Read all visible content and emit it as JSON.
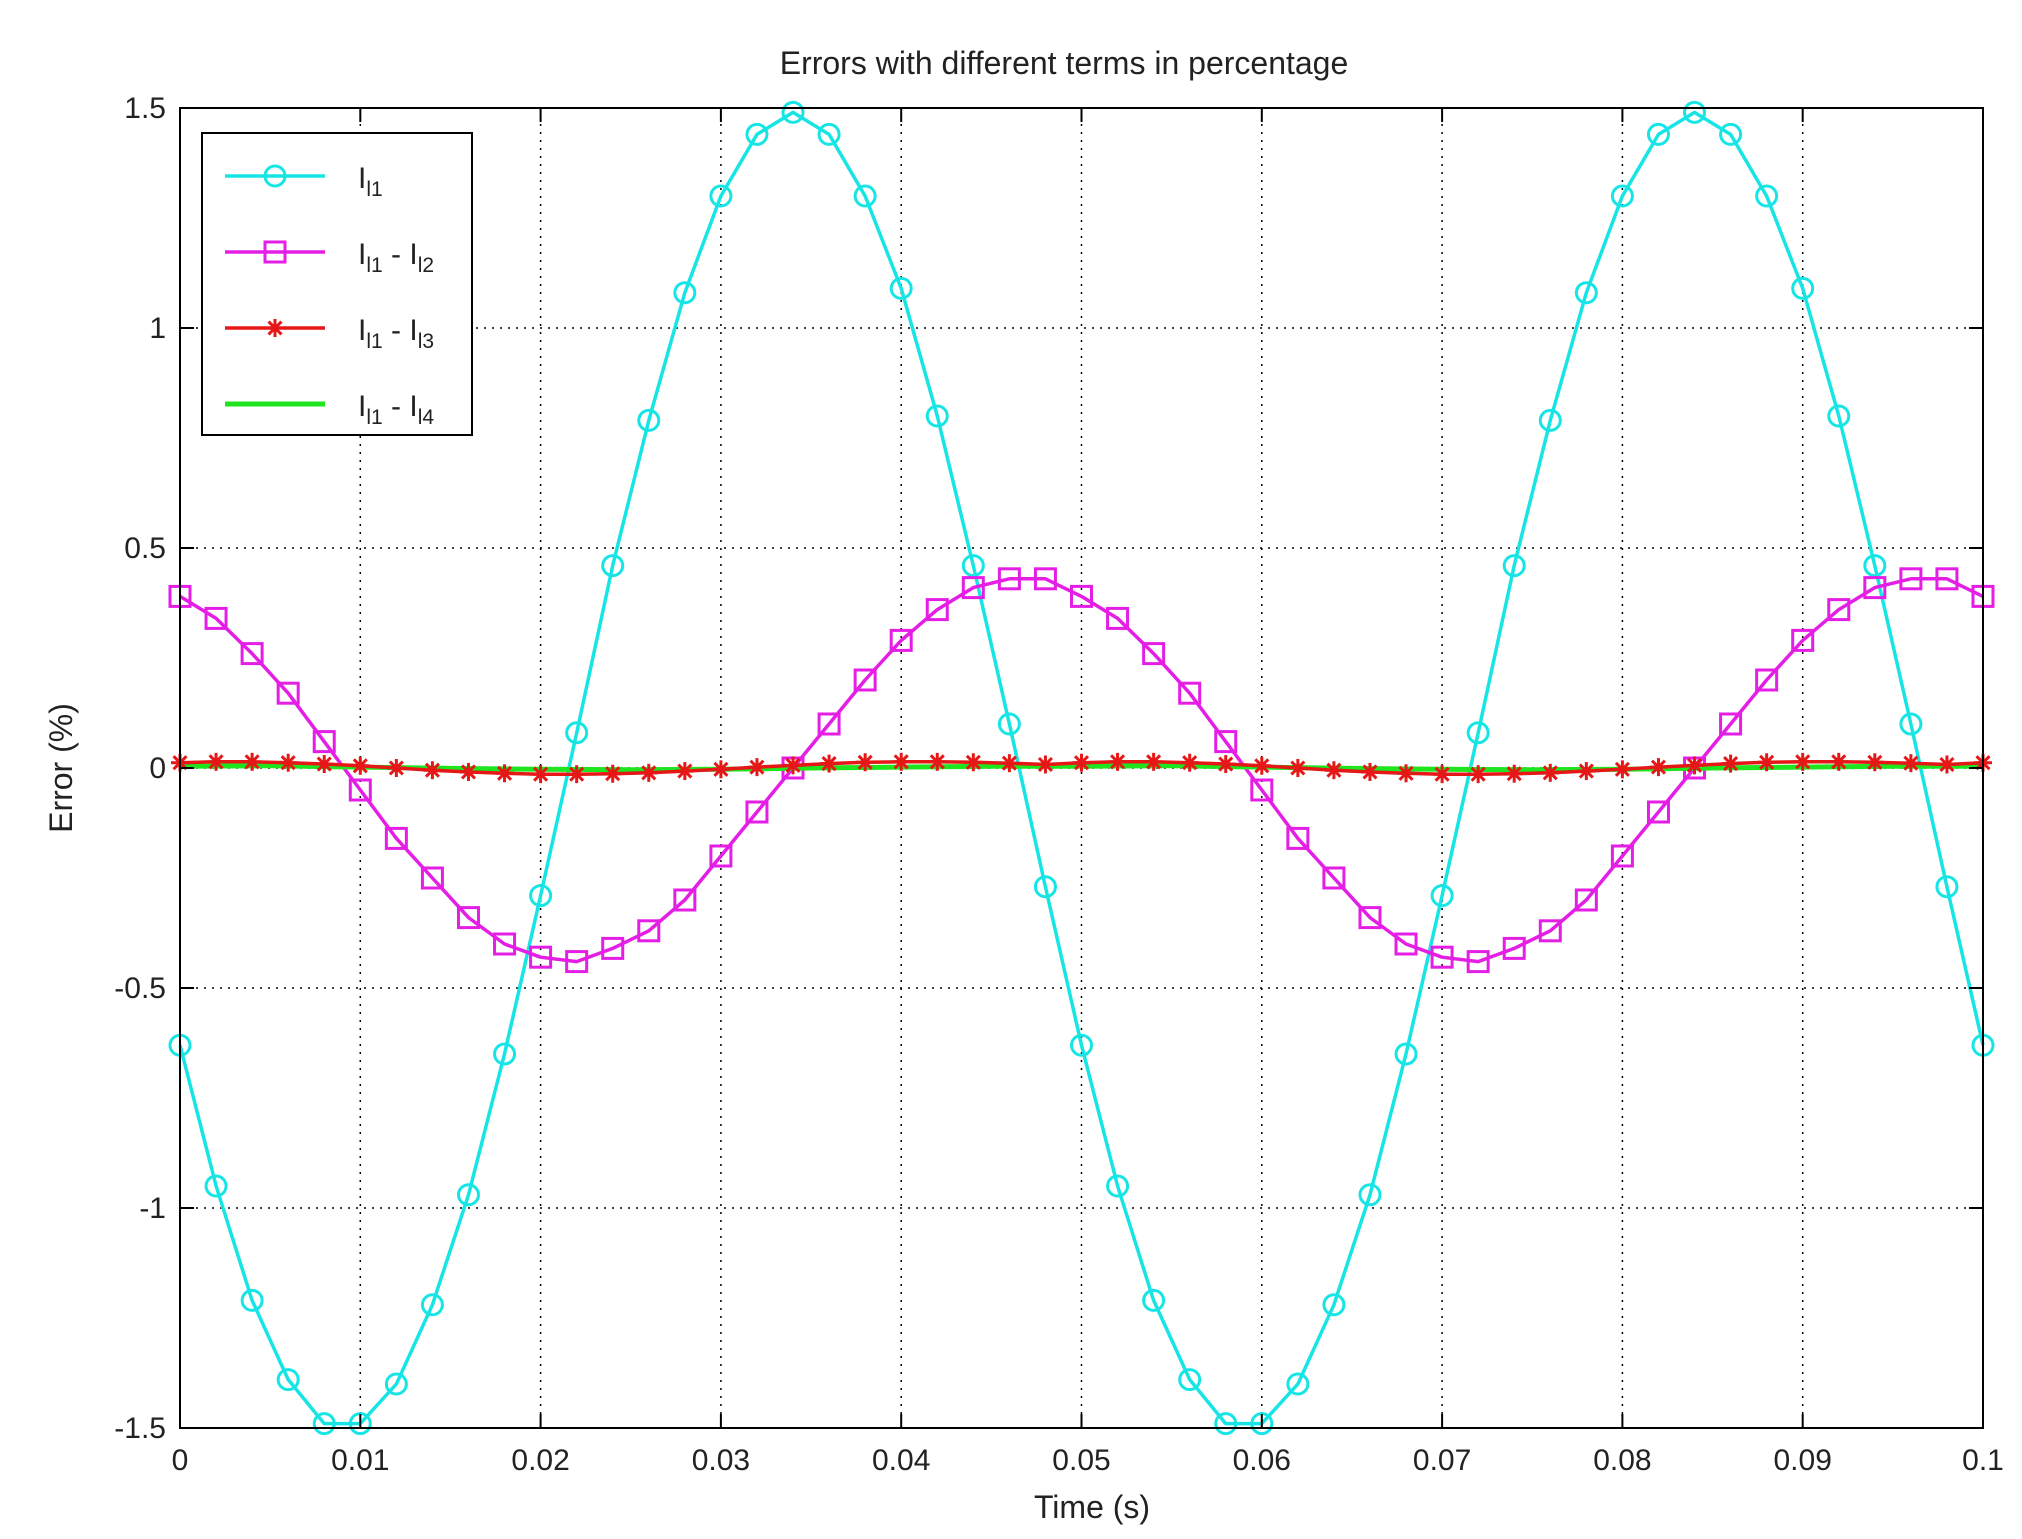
{
  "chart_data": {
    "type": "line",
    "title": "Errors with different terms in percentage",
    "xlabel": "Time (s)",
    "ylabel": "Error (%)",
    "xlim": [
      0,
      0.1
    ],
    "ylim": [
      -1.5,
      1.5
    ],
    "xticks": [
      0,
      0.01,
      0.02,
      0.03,
      0.04,
      0.05,
      0.06,
      0.07,
      0.08,
      0.09,
      0.1
    ],
    "xtick_labels": [
      "0",
      "0.01",
      "0.02",
      "0.03",
      "0.04",
      "0.05",
      "0.06",
      "0.07",
      "0.08",
      "0.09",
      "0.1"
    ],
    "yticks": [
      -1.5,
      -1,
      -0.5,
      0,
      0.5,
      1,
      1.5
    ],
    "ytick_labels": [
      "-1.5",
      "-1",
      "-0.5",
      "0",
      "0.5",
      "1",
      "1.5"
    ],
    "grid": true,
    "legend_position": "top-left",
    "series": [
      {
        "name": "I_l1",
        "legend_parts": [
          {
            "main": "I",
            "sub": "l1"
          }
        ],
        "color": "#17e5e5",
        "marker": "circle",
        "x": [
          0,
          0.002,
          0.004,
          0.006,
          0.008,
          0.01,
          0.012,
          0.014,
          0.016,
          0.018,
          0.02,
          0.022,
          0.024,
          0.026,
          0.028,
          0.03,
          0.032,
          0.034,
          0.036,
          0.038,
          0.04,
          0.042,
          0.044,
          0.046,
          0.048,
          0.05,
          0.052,
          0.054,
          0.056,
          0.058,
          0.06,
          0.062,
          0.064,
          0.066,
          0.068,
          0.07,
          0.072,
          0.074,
          0.076,
          0.078,
          0.08,
          0.082,
          0.084,
          0.086,
          0.088,
          0.09,
          0.092,
          0.094,
          0.096,
          0.098,
          0.1
        ],
        "y": [
          -0.63,
          -0.95,
          -1.21,
          -1.39,
          -1.49,
          -1.49,
          -1.4,
          -1.22,
          -0.97,
          -0.65,
          -0.29,
          0.08,
          0.46,
          0.79,
          1.08,
          1.3,
          1.44,
          1.49,
          1.44,
          1.3,
          1.09,
          0.8,
          0.46,
          0.1,
          -0.27,
          -0.63,
          -0.95,
          -1.21,
          -1.39,
          -1.49,
          -1.49,
          -1.4,
          -1.22,
          -0.97,
          -0.65,
          -0.29,
          0.08,
          0.46,
          0.79,
          1.08,
          1.3,
          1.44,
          1.49,
          1.44,
          1.3,
          1.09,
          0.8,
          0.46,
          0.1,
          -0.27,
          -0.63
        ]
      },
      {
        "name": "I_l1 - I_l2",
        "legend_parts": [
          {
            "main": "I",
            "sub": "l1"
          },
          {
            "main": "I",
            "sub": "l2"
          }
        ],
        "color": "#e51ee5",
        "marker": "square",
        "x": [
          0,
          0.002,
          0.004,
          0.006,
          0.008,
          0.01,
          0.012,
          0.014,
          0.016,
          0.018,
          0.02,
          0.022,
          0.024,
          0.026,
          0.028,
          0.03,
          0.032,
          0.034,
          0.036,
          0.038,
          0.04,
          0.042,
          0.044,
          0.046,
          0.048,
          0.05,
          0.052,
          0.054,
          0.056,
          0.058,
          0.06,
          0.062,
          0.064,
          0.066,
          0.068,
          0.07,
          0.072,
          0.074,
          0.076,
          0.078,
          0.08,
          0.082,
          0.084,
          0.086,
          0.088,
          0.09,
          0.092,
          0.094,
          0.096,
          0.098,
          0.1
        ],
        "y": [
          0.39,
          0.34,
          0.26,
          0.17,
          0.06,
          -0.05,
          -0.16,
          -0.25,
          -0.34,
          -0.4,
          -0.43,
          -0.44,
          -0.41,
          -0.37,
          -0.3,
          -0.2,
          -0.1,
          0.0,
          0.1,
          0.2,
          0.29,
          0.36,
          0.41,
          0.43,
          0.43,
          0.39,
          0.34,
          0.26,
          0.17,
          0.06,
          -0.05,
          -0.16,
          -0.25,
          -0.34,
          -0.4,
          -0.43,
          -0.44,
          -0.41,
          -0.37,
          -0.3,
          -0.2,
          -0.1,
          0.0,
          0.1,
          0.2,
          0.29,
          0.36,
          0.41,
          0.43,
          0.43,
          0.39
        ]
      },
      {
        "name": "I_l1 - I_l3",
        "legend_parts": [
          {
            "main": "I",
            "sub": "l1"
          },
          {
            "main": "I",
            "sub": "l3"
          }
        ],
        "color": "#e51717",
        "marker": "star",
        "x": [
          0,
          0.002,
          0.004,
          0.006,
          0.008,
          0.01,
          0.012,
          0.014,
          0.016,
          0.018,
          0.02,
          0.022,
          0.024,
          0.026,
          0.028,
          0.03,
          0.032,
          0.034,
          0.036,
          0.038,
          0.04,
          0.042,
          0.044,
          0.046,
          0.048,
          0.05,
          0.052,
          0.054,
          0.056,
          0.058,
          0.06,
          0.062,
          0.064,
          0.066,
          0.068,
          0.07,
          0.072,
          0.074,
          0.076,
          0.078,
          0.08,
          0.082,
          0.084,
          0.086,
          0.088,
          0.09,
          0.092,
          0.094,
          0.096,
          0.098,
          0.1
        ],
        "y": [
          0.012,
          0.014,
          0.014,
          0.012,
          0.009,
          0.005,
          0.0,
          -0.005,
          -0.009,
          -0.012,
          -0.014,
          -0.014,
          -0.013,
          -0.011,
          -0.007,
          -0.003,
          0.002,
          0.006,
          0.01,
          0.013,
          0.014,
          0.014,
          0.013,
          0.011,
          0.008,
          0.012,
          0.014,
          0.014,
          0.012,
          0.009,
          0.005,
          0.0,
          -0.005,
          -0.009,
          -0.012,
          -0.014,
          -0.014,
          -0.013,
          -0.011,
          -0.007,
          -0.003,
          0.002,
          0.006,
          0.01,
          0.013,
          0.014,
          0.014,
          0.013,
          0.011,
          0.008,
          0.012
        ]
      },
      {
        "name": "I_l1 - I_l4",
        "legend_parts": [
          {
            "main": "I",
            "sub": "l1"
          },
          {
            "main": "I",
            "sub": "l4"
          }
        ],
        "color": "#1ee51e",
        "marker": "none",
        "x": [
          0,
          0.005,
          0.01,
          0.015,
          0.02,
          0.025,
          0.03,
          0.035,
          0.04,
          0.045,
          0.05,
          0.055,
          0.06,
          0.065,
          0.07,
          0.075,
          0.08,
          0.085,
          0.09,
          0.095,
          0.1
        ],
        "y": [
          0.004,
          0.005,
          0.002,
          -0.001,
          -0.003,
          -0.004,
          -0.003,
          0.0,
          0.002,
          0.004,
          0.004,
          0.005,
          0.002,
          -0.001,
          -0.003,
          -0.004,
          -0.003,
          0.0,
          0.002,
          0.004,
          0.004
        ]
      }
    ]
  }
}
